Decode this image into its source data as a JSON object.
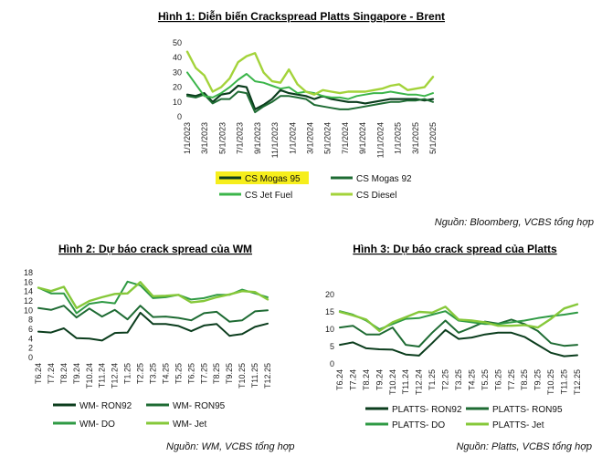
{
  "charts": [
    {
      "id": "c1",
      "title": "Hình 1: Diễn biến Crackspread Platts Singapore - Brent",
      "source": "Nguồn: Bloomberg, VCBS tổng hợp",
      "chart_data": {
        "type": "line",
        "title": "Hình 1: Diễn biến Crackspread Platts Singapore - Brent",
        "ylim": [
          0,
          50
        ],
        "yticks": [
          "0",
          "10",
          "20",
          "30",
          "40",
          "50"
        ],
        "xticks": [
          "1/1/2023",
          "3/1/2023",
          "5/1/2023",
          "7/1/2023",
          "9/1/2023",
          "11/1/2023",
          "1/1/2024",
          "3/1/2024",
          "5/1/2024",
          "7/1/2024",
          "9/1/2024",
          "11/1/2024",
          "1/1/2025",
          "3/1/2025",
          "5/1/2025"
        ],
        "legend": "bottom",
        "series": [
          {
            "name": "CS Mogas 95",
            "color": "#0b3d1d",
            "width": 2.2,
            "highlight": true,
            "values": [
              15,
              14,
              16,
              10,
              15,
              16,
              21,
              20,
              5,
              8,
              12,
              18,
              16,
              15,
              14,
              12,
              14,
              12,
              11,
              10,
              10,
              9,
              10,
              11,
              12,
              12,
              12,
              12,
              11,
              12
            ]
          },
          {
            "name": "CS Mogas 92",
            "color": "#1e6b33",
            "width": 2.0,
            "values": [
              14,
              13,
              15,
              9,
              12,
              12,
              17,
              16,
              3,
              7,
              10,
              14,
              14,
              13,
              12,
              8,
              7,
              6,
              5,
              5,
              6,
              7,
              8,
              9,
              10,
              10,
              11,
              11,
              12,
              10
            ]
          },
          {
            "name": "CS Jet Fuel",
            "color": "#3bb54a",
            "width": 2.0,
            "values": [
              30,
              22,
              14,
              13,
              16,
              20,
              25,
              29,
              24,
              23,
              21,
              19,
              20,
              16,
              17,
              16,
              14,
              13,
              13,
              12,
              14,
              15,
              16,
              16,
              17,
              16,
              15,
              15,
              14,
              16
            ]
          },
          {
            "name": "CS Diesel",
            "color": "#a3d33a",
            "width": 2.4,
            "values": [
              44,
              33,
              28,
              17,
              20,
              26,
              37,
              41,
              43,
              30,
              24,
              23,
              32,
              22,
              17,
              15,
              18,
              17,
              16,
              17,
              17,
              17,
              18,
              19,
              21,
              22,
              18,
              19,
              20,
              27
            ]
          }
        ]
      }
    },
    {
      "id": "c2",
      "title": "Hình 2: Dự báo crack spread của WM",
      "source": "Nguồn: WM, VCBS tổng hợp",
      "chart_data": {
        "type": "line",
        "title": "Hình 2: Dự báo crack spread của WM",
        "ylim": [
          0,
          18
        ],
        "yticks": [
          "0",
          "2",
          "4",
          "6",
          "8",
          "10",
          "12",
          "14",
          "16",
          "18"
        ],
        "categories": [
          "T6.24",
          "T7.24",
          "T8.24",
          "T9.24",
          "T10.24",
          "T11.24",
          "T12.24",
          "T1.25",
          "T2.25",
          "T3.25",
          "T4.25",
          "T5.25",
          "T6.25",
          "T7.25",
          "T8.25",
          "T9.25",
          "T10.25",
          "T11.25",
          "T12.25"
        ],
        "legend": "bottom",
        "series": [
          {
            "name": "WM- RON92",
            "color": "#0b3d1d",
            "width": 2.0,
            "values": [
              5.5,
              5.3,
              6.2,
              4.1,
              4.0,
              3.6,
              5.2,
              5.3,
              9.5,
              7.1,
              7.1,
              6.7,
              5.6,
              6.8,
              7.1,
              4.6,
              5.0,
              6.5,
              7.2
            ]
          },
          {
            "name": "WM- RON95",
            "color": "#1e6b33",
            "width": 2.0,
            "values": [
              10.5,
              10.1,
              11.0,
              8.5,
              10.4,
              8.7,
              10.1,
              8.1,
              11.0,
              8.6,
              8.7,
              8.4,
              7.9,
              9.4,
              9.7,
              7.6,
              7.9,
              9.8,
              10.0
            ]
          },
          {
            "name": "WM- DO",
            "color": "#2f9a44",
            "width": 2.0,
            "values": [
              14.8,
              13.6,
              13.6,
              9.4,
              11.4,
              11.8,
              11.5,
              16.1,
              15.3,
              12.6,
              12.8,
              13.3,
              12.3,
              12.6,
              13.3,
              13.3,
              14.4,
              13.6,
              12.8
            ]
          },
          {
            "name": "WM- Jet",
            "color": "#86c83a",
            "width": 2.4,
            "values": [
              14.8,
              14.1,
              15.0,
              10.5,
              12.0,
              12.8,
              13.5,
              13.6,
              16.0,
              13.0,
              13.1,
              13.3,
              11.7,
              12.0,
              12.8,
              13.4,
              14.1,
              13.9,
              12.3
            ]
          }
        ]
      }
    },
    {
      "id": "c3",
      "title": "Hình 3: Dự báo crack spread của Platts",
      "source": "Nguồn: Platts, VCBS tổng hợp",
      "chart_data": {
        "type": "line",
        "title": "Hình 3: Dự báo crack spread của Platts",
        "ylim": [
          0,
          20
        ],
        "yticks": [
          "0",
          "5",
          "10",
          "15",
          "20"
        ],
        "categories": [
          "T6.24",
          "T7.24",
          "T8.24",
          "T9.24",
          "T10.24",
          "T11.24",
          "T12.24",
          "T1.25",
          "T2.25",
          "T3.25",
          "T4.25",
          "T5.25",
          "T6.25",
          "T7.25",
          "T8.25",
          "T9.25",
          "T10.25",
          "T11.25",
          "T12.25"
        ],
        "legend": "bottom",
        "series": [
          {
            "name": "PLATTS- RON92",
            "color": "#0b3d1d",
            "width": 2.0,
            "values": [
              5.5,
              6.2,
              4.5,
              4.2,
              4.1,
              2.7,
              2.4,
              6.0,
              9.8,
              7.2,
              7.6,
              8.5,
              9.0,
              9.0,
              7.8,
              5.5,
              3.2,
              2.2,
              2.5
            ]
          },
          {
            "name": "PLATTS- RON95",
            "color": "#1e6b33",
            "width": 2.0,
            "values": [
              10.5,
              11.0,
              8.5,
              8.5,
              10.5,
              5.5,
              5.0,
              9.0,
              12.5,
              9.0,
              10.5,
              12.2,
              11.6,
              12.8,
              11.5,
              9.5,
              6.0,
              5.2,
              5.5
            ]
          },
          {
            "name": "PLATTS- DO",
            "color": "#2f9a44",
            "width": 2.0,
            "values": [
              15.2,
              14.2,
              12.5,
              10.0,
              11.5,
              13.0,
              13.2,
              14.2,
              15.2,
              12.5,
              12.0,
              11.5,
              11.5,
              12.0,
              12.5,
              13.2,
              13.8,
              14.2,
              14.8
            ]
          },
          {
            "name": "PLATTS- Jet",
            "color": "#86c83a",
            "width": 2.4,
            "values": [
              15.0,
              14.0,
              12.8,
              9.5,
              12.0,
              13.5,
              15.0,
              14.8,
              16.5,
              12.8,
              12.5,
              12.0,
              11.0,
              11.0,
              11.2,
              10.5,
              13.0,
              16.0,
              17.2
            ]
          }
        ]
      }
    }
  ]
}
